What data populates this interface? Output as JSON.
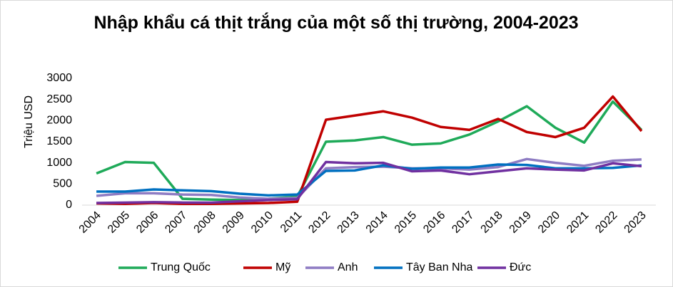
{
  "chart_data": {
    "type": "line",
    "title": "Nhập khẩu cá thịt trắng của một số thị trường, 2004-2023",
    "y_label": "Triệu USD",
    "categories": [
      "2004",
      "2005",
      "2006",
      "2007",
      "2008",
      "2009",
      "2010",
      "2011",
      "2012",
      "2013",
      "2014",
      "2015",
      "2016",
      "2017",
      "2018",
      "2019",
      "2020",
      "2021",
      "2022",
      "2023"
    ],
    "series": [
      {
        "name": "Trung Quốc",
        "color": "#1faa59",
        "values": [
          750,
          1020,
          1000,
          150,
          130,
          120,
          150,
          200,
          1500,
          1530,
          1610,
          1430,
          1460,
          1670,
          1980,
          2340,
          1830,
          1480,
          2450,
          1780
        ]
      },
      {
        "name": "Mỹ",
        "color": "#c00000",
        "values": [
          40,
          30,
          50,
          30,
          30,
          40,
          50,
          80,
          2020,
          2120,
          2220,
          2070,
          1850,
          1780,
          2040,
          1730,
          1610,
          1830,
          2570,
          1750
        ]
      },
      {
        "name": "Anh",
        "color": "#8e7cc3",
        "values": [
          220,
          280,
          280,
          250,
          240,
          180,
          150,
          170,
          870,
          900,
          910,
          870,
          870,
          840,
          900,
          1090,
          1000,
          930,
          1050,
          1080
        ]
      },
      {
        "name": "Tây Ban Nha",
        "color": "#0070c0",
        "values": [
          320,
          320,
          370,
          350,
          330,
          270,
          230,
          250,
          810,
          820,
          940,
          860,
          890,
          890,
          960,
          950,
          870,
          870,
          880,
          940
        ]
      },
      {
        "name": "Đức",
        "color": "#7030a0",
        "values": [
          50,
          60,
          70,
          60,
          60,
          90,
          120,
          140,
          1020,
          990,
          1000,
          800,
          820,
          730,
          800,
          870,
          840,
          820,
          990,
          920
        ]
      }
    ],
    "ylim": [
      0,
      3000
    ],
    "yticks": [
      0,
      500,
      1000,
      1500,
      2000,
      2500,
      3000
    ],
    "grid": false,
    "legend": "bottom"
  }
}
